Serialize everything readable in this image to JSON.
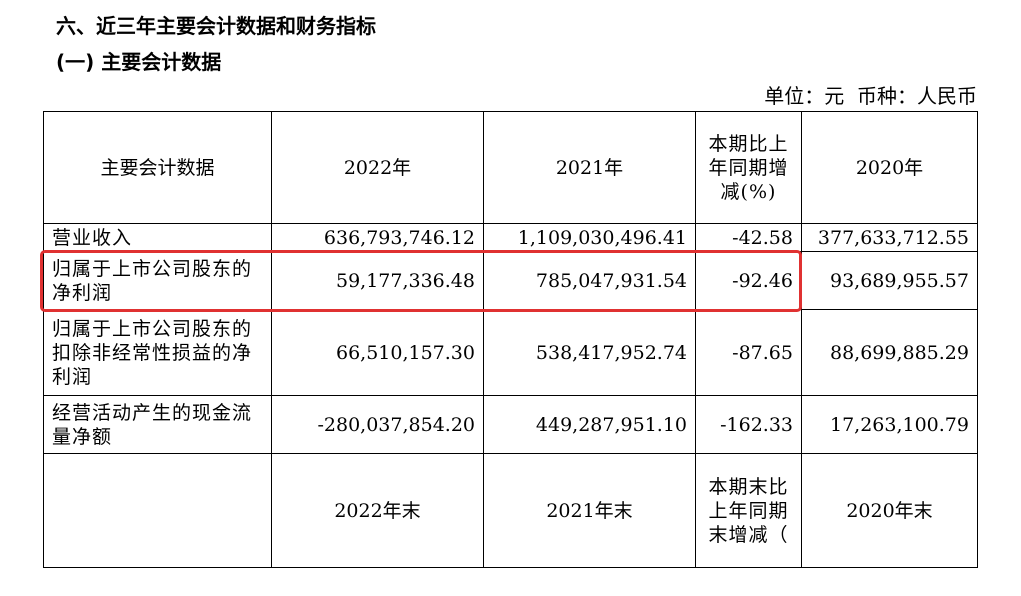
{
  "section_title": "六、近三年主要会计数据和财务指标",
  "subsection_title": "(一) 主要会计数据",
  "unit_note": "单位：元  币种：人民币",
  "highlight_color": "#e03131",
  "header": {
    "label": "主要会计数据",
    "y2022": "2022年",
    "y2021": "2021年",
    "change": "本期比上年同期增减(%)",
    "y2020": "2020年"
  },
  "rows": [
    {
      "label": "营业收入",
      "y2022": "636,793,746.12",
      "y2021": "1,109,030,496.41",
      "change": "-42.58",
      "y2020": "377,633,712.55"
    },
    {
      "label": "归属于上市公司股东的净利润",
      "y2022": "59,177,336.48",
      "y2021": "785,047,931.54",
      "change": "-92.46",
      "y2020": "93,689,955.57"
    },
    {
      "label": "归属于上市公司股东的扣除非经常性损益的净利润",
      "y2022": "66,510,157.30",
      "y2021": "538,417,952.74",
      "change": "-87.65",
      "y2020": "88,699,885.29"
    },
    {
      "label": "经营活动产生的现金流量净额",
      "y2022": "-280,037,854.20",
      "y2021": "449,287,951.10",
      "change": "-162.33",
      "y2020": "17,263,100.79"
    }
  ],
  "footer_header": {
    "label": "",
    "y2022": "2022年末",
    "y2021": "2021年末",
    "change": "本期末比上年同期末增减（",
    "y2020": "2020年末"
  }
}
